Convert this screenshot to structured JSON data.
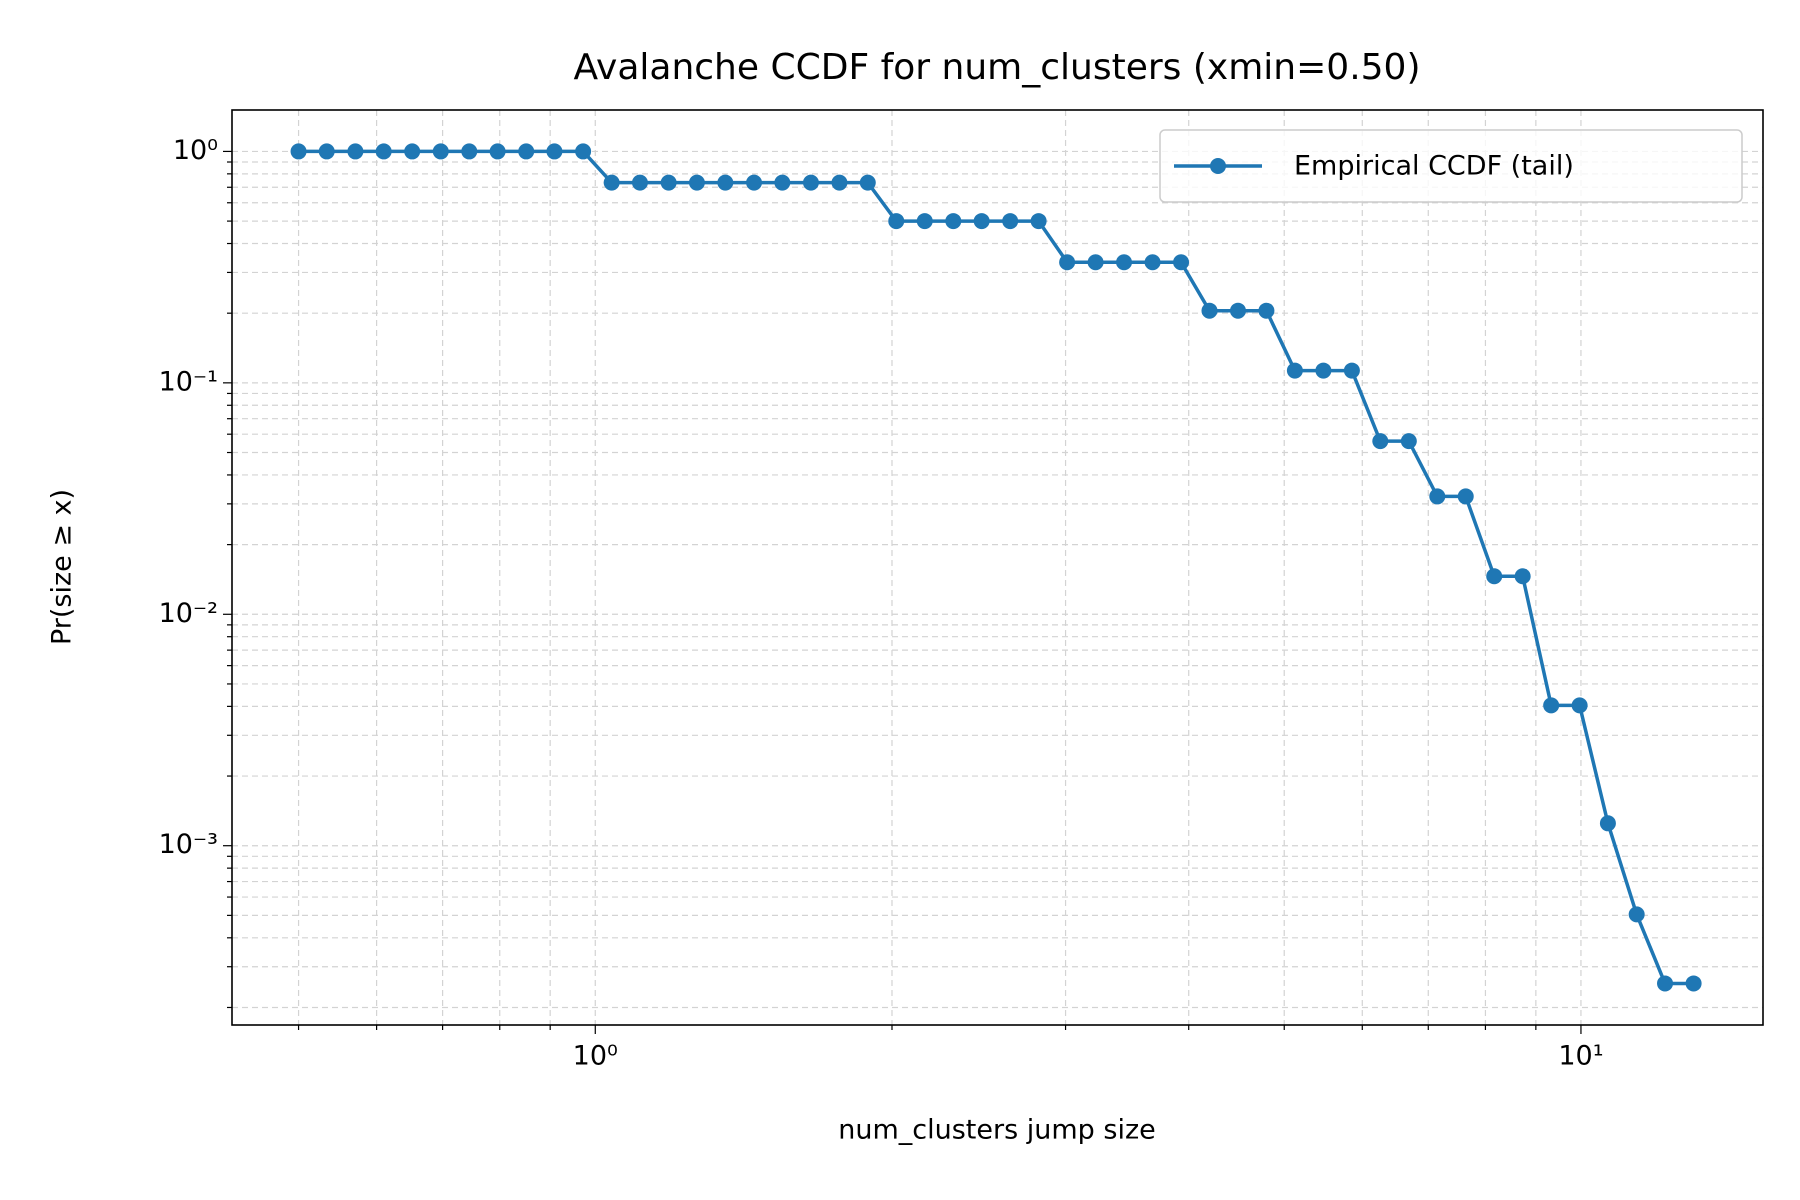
{
  "chart_data": {
    "type": "line",
    "title": "Avalanche CCDF for num_clusters (xmin=0.50)",
    "xlabel": "num_clusters jump size",
    "ylabel": "Pr(size ≥ x)",
    "xscale": "log",
    "yscale": "log",
    "grid": true,
    "legend": "upper right",
    "x": [
      0.5,
      0.534,
      0.571,
      0.61,
      0.652,
      0.697,
      0.745,
      0.796,
      0.851,
      0.909,
      0.972,
      1.039,
      1.11,
      1.187,
      1.268,
      1.355,
      1.449,
      1.548,
      1.655,
      1.769,
      1.89,
      2.02,
      2.159,
      2.308,
      2.466,
      2.636,
      2.817,
      3.011,
      3.218,
      3.439,
      3.676,
      3.929,
      4.199,
      4.488,
      4.796,
      5.126,
      5.479,
      5.856,
      6.258,
      6.689,
      7.149,
      7.64,
      8.166,
      8.727,
      9.328,
      9.969,
      10.65,
      11.39,
      12.17,
      13.01
    ],
    "series": [
      {
        "name": "Empirical CCDF (tail)",
        "color": "#1f77b4",
        "values": [
          1,
          1,
          1,
          1,
          1,
          1,
          1,
          1,
          1,
          1,
          1,
          0.733,
          0.733,
          0.733,
          0.733,
          0.733,
          0.733,
          0.733,
          0.733,
          0.733,
          0.733,
          0.5,
          0.5,
          0.5,
          0.5,
          0.5,
          0.5,
          0.332,
          0.332,
          0.332,
          0.332,
          0.332,
          0.205,
          0.205,
          0.205,
          0.113,
          0.113,
          0.113,
          0.056,
          0.056,
          0.0323,
          0.0323,
          0.0146,
          0.0146,
          0.00404,
          0.00404,
          0.00125,
          0.000505,
          0.000254,
          0.000254
        ]
      }
    ],
    "xlim": [
      0.428,
      15.3
    ],
    "ylim": [
      0.000168,
      1.51
    ],
    "xticks": [
      {
        "value": 1,
        "label": "10⁰"
      },
      {
        "value": 10,
        "label": "10¹"
      }
    ],
    "yticks": [
      {
        "value": 0.001,
        "label": "10⁻³"
      },
      {
        "value": 0.01,
        "label": "10⁻²"
      },
      {
        "value": 0.1,
        "label": "10⁻¹"
      },
      {
        "value": 1,
        "label": "10⁰"
      }
    ],
    "xminorticks": [
      0.5,
      0.6,
      0.7,
      0.8,
      0.9,
      2,
      3,
      4,
      5,
      6,
      7,
      8,
      9
    ],
    "yminorticks": [
      0.0002,
      0.0003,
      0.0004,
      0.0005,
      0.0006,
      0.0007,
      0.0008,
      0.0009,
      0.002,
      0.003,
      0.004,
      0.005,
      0.006,
      0.007,
      0.008,
      0.009,
      0.02,
      0.03,
      0.04,
      0.05,
      0.06,
      0.07,
      0.08,
      0.09,
      0.2,
      0.3,
      0.4,
      0.5,
      0.6,
      0.7,
      0.8,
      0.9
    ]
  }
}
